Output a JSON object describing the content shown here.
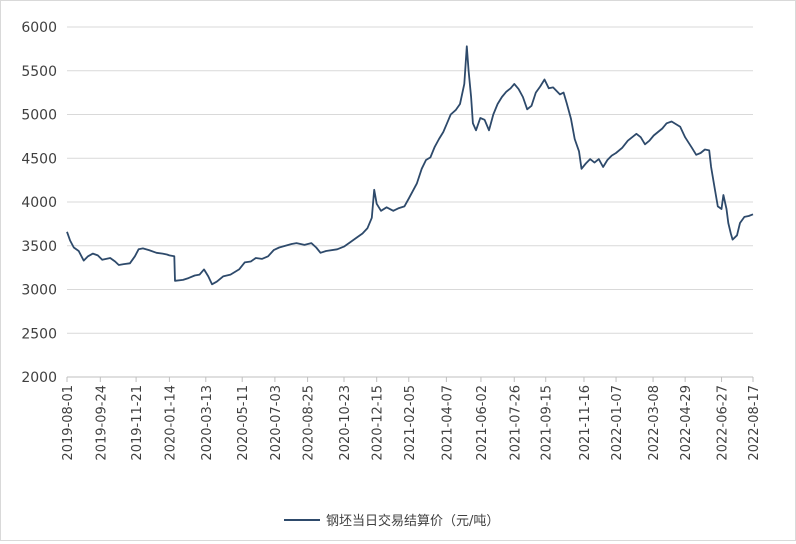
{
  "chart_data": {
    "type": "line",
    "title": "",
    "xlabel": "",
    "ylabel": "",
    "ylim": [
      2000,
      6000
    ],
    "yticks": [
      2000,
      2500,
      3000,
      3500,
      4000,
      4500,
      5000,
      5500,
      6000
    ],
    "grid": "horizontal",
    "legend_position": "bottom",
    "x_tick_labels": [
      "2019-08-01",
      "2019-09-24",
      "2019-11-21",
      "2020-01-14",
      "2020-03-13",
      "2020-05-11",
      "2020-07-03",
      "2020-08-25",
      "2020-10-23",
      "2020-12-15",
      "2021-02-05",
      "2021-04-07",
      "2021-06-02",
      "2021-07-26",
      "2021-09-15",
      "2021-11-16",
      "2022-01-07",
      "2022-03-08",
      "2022-04-29",
      "2022-06-27",
      "2022-08-17"
    ],
    "series": [
      {
        "name": "钢坯当日交易结算价（元/吨）",
        "color": "#2e4a6b",
        "points": [
          [
            "2019-08-01",
            3660
          ],
          [
            "2019-08-06",
            3560
          ],
          [
            "2019-08-12",
            3480
          ],
          [
            "2019-08-20",
            3440
          ],
          [
            "2019-08-28",
            3330
          ],
          [
            "2019-09-04",
            3380
          ],
          [
            "2019-09-12",
            3410
          ],
          [
            "2019-09-20",
            3390
          ],
          [
            "2019-09-27",
            3340
          ],
          [
            "2019-10-10",
            3360
          ],
          [
            "2019-10-18",
            3320
          ],
          [
            "2019-10-24",
            3280
          ],
          [
            "2019-11-01",
            3290
          ],
          [
            "2019-11-11",
            3300
          ],
          [
            "2019-11-19",
            3380
          ],
          [
            "2019-11-25",
            3460
          ],
          [
            "2019-12-02",
            3470
          ],
          [
            "2019-12-12",
            3450
          ],
          [
            "2019-12-24",
            3420
          ],
          [
            "2020-01-03",
            3410
          ],
          [
            "2020-01-10",
            3400
          ],
          [
            "2020-01-14",
            3390
          ],
          [
            "2020-01-22",
            3380
          ],
          [
            "2020-01-23",
            3100
          ],
          [
            "2020-02-05",
            3110
          ],
          [
            "2020-02-14",
            3130
          ],
          [
            "2020-02-24",
            3160
          ],
          [
            "2020-03-03",
            3170
          ],
          [
            "2020-03-10",
            3230
          ],
          [
            "2020-03-17",
            3150
          ],
          [
            "2020-03-23",
            3060
          ],
          [
            "2020-03-31",
            3090
          ],
          [
            "2020-04-10",
            3150
          ],
          [
            "2020-04-22",
            3170
          ],
          [
            "2020-05-06",
            3230
          ],
          [
            "2020-05-15",
            3310
          ],
          [
            "2020-05-25",
            3320
          ],
          [
            "2020-06-02",
            3360
          ],
          [
            "2020-06-12",
            3350
          ],
          [
            "2020-06-22",
            3380
          ],
          [
            "2020-07-01",
            3450
          ],
          [
            "2020-07-10",
            3480
          ],
          [
            "2020-07-20",
            3500
          ],
          [
            "2020-07-30",
            3520
          ],
          [
            "2020-08-07",
            3530
          ],
          [
            "2020-08-20",
            3510
          ],
          [
            "2020-08-31",
            3530
          ],
          [
            "2020-09-08",
            3480
          ],
          [
            "2020-09-15",
            3420
          ],
          [
            "2020-09-24",
            3440
          ],
          [
            "2020-10-12",
            3460
          ],
          [
            "2020-10-23",
            3490
          ],
          [
            "2020-11-02",
            3540
          ],
          [
            "2020-11-12",
            3590
          ],
          [
            "2020-11-22",
            3640
          ],
          [
            "2020-11-30",
            3700
          ],
          [
            "2020-12-07",
            3820
          ],
          [
            "2020-12-11",
            4140
          ],
          [
            "2020-12-15",
            3980
          ],
          [
            "2020-12-22",
            3900
          ],
          [
            "2020-12-31",
            3940
          ],
          [
            "2021-01-11",
            3900
          ],
          [
            "2021-01-20",
            3930
          ],
          [
            "2021-01-29",
            3950
          ],
          [
            "2021-02-05",
            4040
          ],
          [
            "2021-02-18",
            4210
          ],
          [
            "2021-02-26",
            4380
          ],
          [
            "2021-03-05",
            4480
          ],
          [
            "2021-03-12",
            4510
          ],
          [
            "2021-03-19",
            4630
          ],
          [
            "2021-03-26",
            4720
          ],
          [
            "2021-04-02",
            4800
          ],
          [
            "2021-04-08",
            4900
          ],
          [
            "2021-04-14",
            5000
          ],
          [
            "2021-04-22",
            5050
          ],
          [
            "2021-04-29",
            5120
          ],
          [
            "2021-05-06",
            5350
          ],
          [
            "2021-05-10",
            5780
          ],
          [
            "2021-05-13",
            5500
          ],
          [
            "2021-05-17",
            5200
          ],
          [
            "2021-05-20",
            4900
          ],
          [
            "2021-05-25",
            4820
          ],
          [
            "2021-06-01",
            4960
          ],
          [
            "2021-06-08",
            4940
          ],
          [
            "2021-06-15",
            4820
          ],
          [
            "2021-06-22",
            5000
          ],
          [
            "2021-06-29",
            5120
          ],
          [
            "2021-07-06",
            5200
          ],
          [
            "2021-07-13",
            5260
          ],
          [
            "2021-07-20",
            5300
          ],
          [
            "2021-07-26",
            5350
          ],
          [
            "2021-08-02",
            5290
          ],
          [
            "2021-08-09",
            5200
          ],
          [
            "2021-08-16",
            5060
          ],
          [
            "2021-08-23",
            5100
          ],
          [
            "2021-08-30",
            5250
          ],
          [
            "2021-09-06",
            5320
          ],
          [
            "2021-09-13",
            5400
          ],
          [
            "2021-09-20",
            5300
          ],
          [
            "2021-09-27",
            5310
          ],
          [
            "2021-10-08",
            5230
          ],
          [
            "2021-10-14",
            5250
          ],
          [
            "2021-10-19",
            5130
          ],
          [
            "2021-10-26",
            4950
          ],
          [
            "2021-11-01",
            4720
          ],
          [
            "2021-11-08",
            4580
          ],
          [
            "2021-11-12",
            4380
          ],
          [
            "2021-11-19",
            4440
          ],
          [
            "2021-11-26",
            4490
          ],
          [
            "2021-12-03",
            4450
          ],
          [
            "2021-12-10",
            4490
          ],
          [
            "2021-12-17",
            4400
          ],
          [
            "2021-12-24",
            4480
          ],
          [
            "2021-12-31",
            4530
          ],
          [
            "2022-01-07",
            4560
          ],
          [
            "2022-01-17",
            4620
          ],
          [
            "2022-01-26",
            4700
          ],
          [
            "2022-02-09",
            4780
          ],
          [
            "2022-02-16",
            4740
          ],
          [
            "2022-02-23",
            4660
          ],
          [
            "2022-03-02",
            4700
          ],
          [
            "2022-03-09",
            4760
          ],
          [
            "2022-03-16",
            4800
          ],
          [
            "2022-03-23",
            4840
          ],
          [
            "2022-03-30",
            4900
          ],
          [
            "2022-04-07",
            4920
          ],
          [
            "2022-04-14",
            4890
          ],
          [
            "2022-04-21",
            4860
          ],
          [
            "2022-04-29",
            4740
          ],
          [
            "2022-05-10",
            4620
          ],
          [
            "2022-05-17",
            4540
          ],
          [
            "2022-05-24",
            4560
          ],
          [
            "2022-05-31",
            4600
          ],
          [
            "2022-06-07",
            4590
          ],
          [
            "2022-06-10",
            4400
          ],
          [
            "2022-06-16",
            4150
          ],
          [
            "2022-06-21",
            3950
          ],
          [
            "2022-06-27",
            3920
          ],
          [
            "2022-06-30",
            4080
          ],
          [
            "2022-07-05",
            3920
          ],
          [
            "2022-07-08",
            3760
          ],
          [
            "2022-07-12",
            3640
          ],
          [
            "2022-07-15",
            3570
          ],
          [
            "2022-07-22",
            3620
          ],
          [
            "2022-07-27",
            3760
          ],
          [
            "2022-08-03",
            3830
          ],
          [
            "2022-08-10",
            3840
          ],
          [
            "2022-08-17",
            3860
          ]
        ]
      }
    ]
  }
}
